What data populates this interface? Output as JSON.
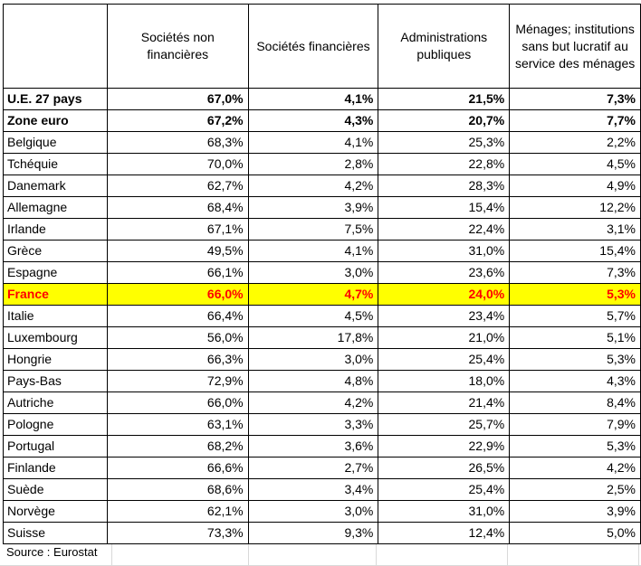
{
  "table": {
    "headers": [
      "",
      "Sociétés non financières",
      "Sociétés financières",
      "Administrations publiques",
      "Ménages; institutions sans but lucratif au service des ménages"
    ],
    "rows": [
      {
        "label": "U.E. 27 pays",
        "v": [
          "67,0%",
          "4,1%",
          "21,5%",
          "7,3%"
        ]
      },
      {
        "label": "Zone euro",
        "v": [
          "67,2%",
          "4,3%",
          "20,7%",
          "7,7%"
        ]
      },
      {
        "label": "Belgique",
        "v": [
          "68,3%",
          "4,1%",
          "25,3%",
          "2,2%"
        ]
      },
      {
        "label": "Tchéquie",
        "v": [
          "70,0%",
          "2,8%",
          "22,8%",
          "4,5%"
        ]
      },
      {
        "label": "Danemark",
        "v": [
          "62,7%",
          "4,2%",
          "28,3%",
          "4,9%"
        ]
      },
      {
        "label": "Allemagne",
        "v": [
          "68,4%",
          "3,9%",
          "15,4%",
          "12,2%"
        ]
      },
      {
        "label": "Irlande",
        "v": [
          "67,1%",
          "7,5%",
          "22,4%",
          "3,1%"
        ]
      },
      {
        "label": "Grèce",
        "v": [
          "49,5%",
          "4,1%",
          "31,0%",
          "15,4%"
        ]
      },
      {
        "label": "Espagne",
        "v": [
          "66,1%",
          "3,0%",
          "23,6%",
          "7,3%"
        ]
      },
      {
        "label": "France",
        "v": [
          "66,0%",
          "4,7%",
          "24,0%",
          "5,3%"
        ]
      },
      {
        "label": "Italie",
        "v": [
          "66,4%",
          "4,5%",
          "23,4%",
          "5,7%"
        ]
      },
      {
        "label": "Luxembourg",
        "v": [
          "56,0%",
          "17,8%",
          "21,0%",
          "5,1%"
        ]
      },
      {
        "label": "Hongrie",
        "v": [
          "66,3%",
          "3,0%",
          "25,4%",
          "5,3%"
        ]
      },
      {
        "label": "Pays-Bas",
        "v": [
          "72,9%",
          "4,8%",
          "18,0%",
          "4,3%"
        ]
      },
      {
        "label": "Autriche",
        "v": [
          "66,0%",
          "4,2%",
          "21,4%",
          "8,4%"
        ]
      },
      {
        "label": "Pologne",
        "v": [
          "63,1%",
          "3,3%",
          "25,7%",
          "7,9%"
        ]
      },
      {
        "label": "Portugal",
        "v": [
          "68,2%",
          "3,6%",
          "22,9%",
          "5,3%"
        ]
      },
      {
        "label": "Finlande",
        "v": [
          "66,6%",
          "2,7%",
          "26,5%",
          "4,2%"
        ]
      },
      {
        "label": "Suède",
        "v": [
          "68,6%",
          "3,4%",
          "25,4%",
          "2,5%"
        ]
      },
      {
        "label": "Norvège",
        "v": [
          "62,1%",
          "3,0%",
          "31,0%",
          "3,9%"
        ]
      },
      {
        "label": "Suisse",
        "v": [
          "73,3%",
          "9,3%",
          "12,4%",
          "5,0%"
        ]
      }
    ]
  },
  "footer": {
    "source": "Source : Eurostat"
  },
  "colors": {
    "highlight_bg": "#ffff00",
    "highlight_text": "#ff0000"
  }
}
